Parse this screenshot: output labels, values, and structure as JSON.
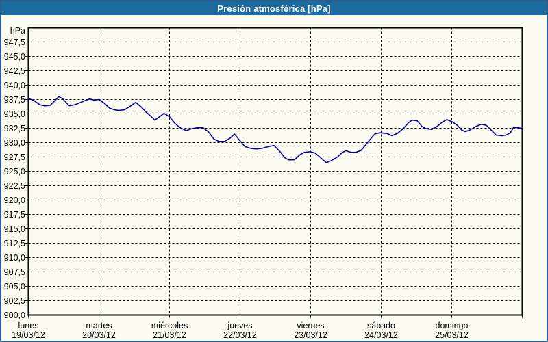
{
  "title": "Presión atmosférica [hPa]",
  "colors": {
    "titlebar_bg": "#1d6b9e",
    "titlebar_text": "#ffffff",
    "window_border": "#27618f",
    "window_bg": "#fbfbf2",
    "grid": "#000000",
    "line": "#0000a0"
  },
  "chart_data": {
    "type": "line",
    "title": "Presión atmosférica [hPa]",
    "xlabel": "",
    "ylabel": "hPa",
    "ylim": [
      900,
      950
    ],
    "ytick_step": 2.5,
    "grid": "dashed",
    "legend": "none",
    "yticks": [
      "947,5",
      "945,0",
      "942,5",
      "940,0",
      "937,5",
      "935,0",
      "932,5",
      "930,0",
      "927,5",
      "925,0",
      "922,5",
      "920,0",
      "917,5",
      "915,0",
      "912,5",
      "910,0",
      "907,5",
      "905,0",
      "902,5",
      "900,0"
    ],
    "days": [
      {
        "name": "lunes",
        "date": "19/03/12"
      },
      {
        "name": "martes",
        "date": "20/03/12"
      },
      {
        "name": "miércoles",
        "date": "21/03/12"
      },
      {
        "name": "jueves",
        "date": "22/03/12"
      },
      {
        "name": "viernes",
        "date": "23/03/12"
      },
      {
        "name": "sábado",
        "date": "24/03/12"
      },
      {
        "name": "domingo",
        "date": "25/03/12"
      }
    ],
    "series": [
      {
        "name": "Presión atmosférica",
        "color": "#0000a0",
        "x_unit": "days_since_lunes_00h",
        "points": [
          [
            0.0,
            937.7
          ],
          [
            0.08,
            937.3
          ],
          [
            0.16,
            936.6
          ],
          [
            0.23,
            936.4
          ],
          [
            0.31,
            936.5
          ],
          [
            0.39,
            937.5
          ],
          [
            0.43,
            938.0
          ],
          [
            0.49,
            937.6
          ],
          [
            0.54,
            936.9
          ],
          [
            0.58,
            936.4
          ],
          [
            0.66,
            936.6
          ],
          [
            0.74,
            937.0
          ],
          [
            0.82,
            937.4
          ],
          [
            0.87,
            937.6
          ],
          [
            0.93,
            937.4
          ],
          [
            1.0,
            937.5
          ],
          [
            1.07,
            936.9
          ],
          [
            1.15,
            936.0
          ],
          [
            1.22,
            935.7
          ],
          [
            1.28,
            935.6
          ],
          [
            1.36,
            935.7
          ],
          [
            1.44,
            936.3
          ],
          [
            1.52,
            937.0
          ],
          [
            1.59,
            936.3
          ],
          [
            1.67,
            935.3
          ],
          [
            1.75,
            934.4
          ],
          [
            1.79,
            933.9
          ],
          [
            1.87,
            934.6
          ],
          [
            1.92,
            935.1
          ],
          [
            2.0,
            934.5
          ],
          [
            2.08,
            933.3
          ],
          [
            2.16,
            932.5
          ],
          [
            2.24,
            932.1
          ],
          [
            2.31,
            932.4
          ],
          [
            2.39,
            932.6
          ],
          [
            2.47,
            932.6
          ],
          [
            2.55,
            931.9
          ],
          [
            2.63,
            930.6
          ],
          [
            2.7,
            930.2
          ],
          [
            2.78,
            930.2
          ],
          [
            2.86,
            930.8
          ],
          [
            2.92,
            931.5
          ],
          [
            3.0,
            930.3
          ],
          [
            3.07,
            929.3
          ],
          [
            3.15,
            929.0
          ],
          [
            3.23,
            928.9
          ],
          [
            3.31,
            929.0
          ],
          [
            3.4,
            929.3
          ],
          [
            3.48,
            929.5
          ],
          [
            3.56,
            928.5
          ],
          [
            3.64,
            927.3
          ],
          [
            3.69,
            927.0
          ],
          [
            3.77,
            927.0
          ],
          [
            3.85,
            927.9
          ],
          [
            3.91,
            928.3
          ],
          [
            3.99,
            928.4
          ],
          [
            4.06,
            928.2
          ],
          [
            4.14,
            927.4
          ],
          [
            4.22,
            926.5
          ],
          [
            4.3,
            926.9
          ],
          [
            4.38,
            927.5
          ],
          [
            4.45,
            928.3
          ],
          [
            4.5,
            928.6
          ],
          [
            4.57,
            928.3
          ],
          [
            4.64,
            928.3
          ],
          [
            4.71,
            928.6
          ],
          [
            4.76,
            929.3
          ],
          [
            4.84,
            930.5
          ],
          [
            4.91,
            931.5
          ],
          [
            4.98,
            931.7
          ],
          [
            5.08,
            931.6
          ],
          [
            5.15,
            931.2
          ],
          [
            5.23,
            931.6
          ],
          [
            5.31,
            932.4
          ],
          [
            5.39,
            933.5
          ],
          [
            5.44,
            933.9
          ],
          [
            5.51,
            933.8
          ],
          [
            5.58,
            932.8
          ],
          [
            5.64,
            932.4
          ],
          [
            5.72,
            932.3
          ],
          [
            5.79,
            932.8
          ],
          [
            5.87,
            933.6
          ],
          [
            5.93,
            934.0
          ],
          [
            6.01,
            933.6
          ],
          [
            6.08,
            933.0
          ],
          [
            6.14,
            932.2
          ],
          [
            6.19,
            931.9
          ],
          [
            6.26,
            932.2
          ],
          [
            6.34,
            932.8
          ],
          [
            6.42,
            933.2
          ],
          [
            6.49,
            933.0
          ],
          [
            6.55,
            932.3
          ],
          [
            6.63,
            931.3
          ],
          [
            6.71,
            931.2
          ],
          [
            6.77,
            931.3
          ],
          [
            6.83,
            931.7
          ],
          [
            6.88,
            932.7
          ],
          [
            6.93,
            932.6
          ],
          [
            7.0,
            932.5
          ]
        ]
      }
    ]
  }
}
